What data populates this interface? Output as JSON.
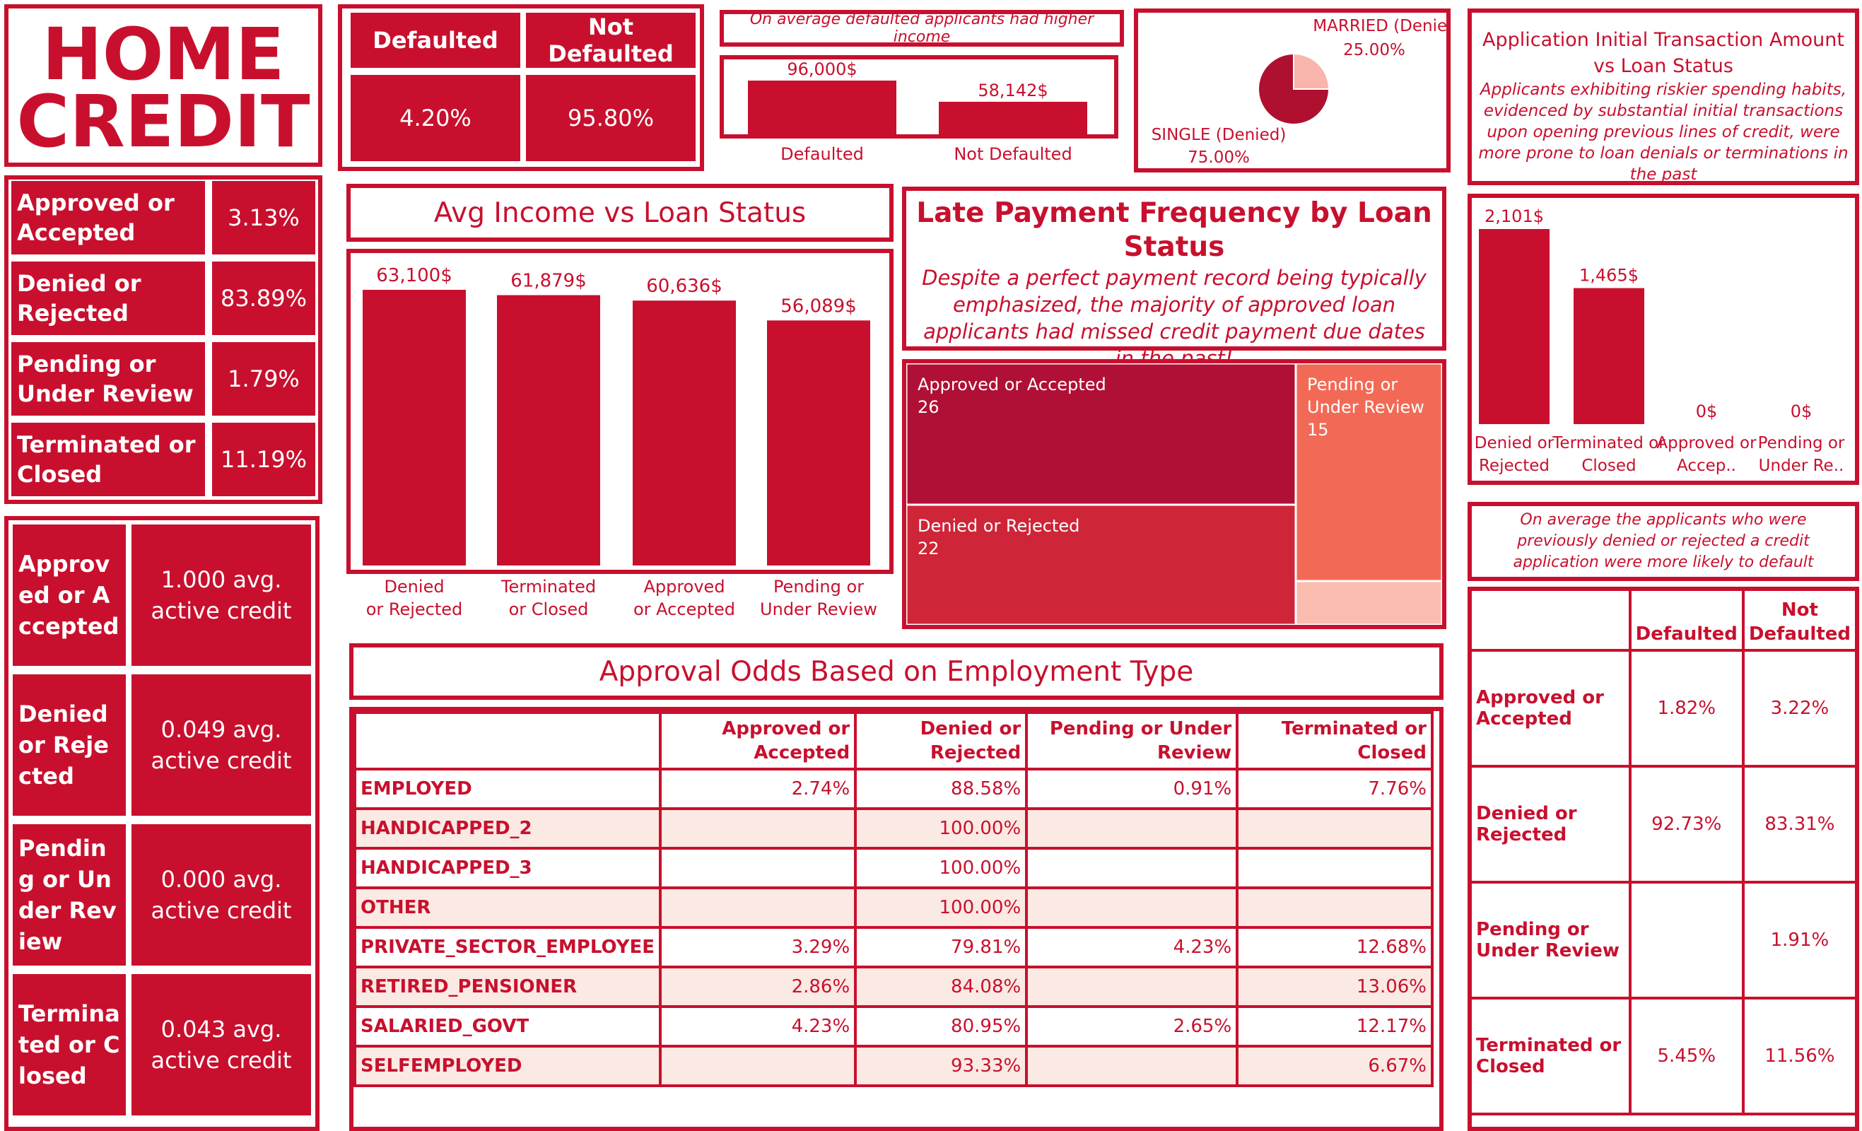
{
  "logo": {
    "line1": "HOME",
    "line2": "CREDIT"
  },
  "status_share": [
    {
      "label": "Approved or Accepted",
      "value": "3.13%"
    },
    {
      "label": "Denied or Rejected",
      "value": "83.89%"
    },
    {
      "label": "Pending or Under Review",
      "value": "1.79%"
    },
    {
      "label": "Terminated or Closed",
      "value": "11.19%"
    }
  ],
  "active_credit": [
    {
      "label": "Approved or Accepted",
      "value": "1.000 avg. active credit"
    },
    {
      "label": "Denied or Rejected",
      "value": "0.049 avg. active credit"
    },
    {
      "label": "Pending or Under Review",
      "value": "0.000 avg. active credit"
    },
    {
      "label": "Terminated or Closed",
      "value": "0.043 avg. active credit"
    }
  ],
  "default_rate": {
    "headers": [
      "Defaulted",
      "Not Defaulted"
    ],
    "values": [
      "4.20%",
      "95.80%"
    ]
  },
  "income_default": {
    "note": "On average defaulted applicants had higher income",
    "chart_data": {
      "type": "bar",
      "categories": [
        "Defaulted",
        "Not Defaulted"
      ],
      "values": [
        96000,
        58142
      ],
      "labels": [
        "96,000$",
        "58,142$"
      ]
    }
  },
  "marital": {
    "chart_data": {
      "type": "pie",
      "slices": [
        {
          "name": "MARRIED (Denied)",
          "value": 25.0,
          "label": "25.00%",
          "color": "#f9b4ab"
        },
        {
          "name": "SINGLE (Denied)",
          "value": 75.0,
          "label": "75.00%",
          "color": "#b01030"
        }
      ]
    }
  },
  "avg_income": {
    "title": "Avg Income vs Loan Status",
    "chart_data": {
      "type": "bar",
      "categories": [
        "Denied or Rejected",
        "Terminated or Closed",
        "Approved or Accepted",
        "Pending or Under Review"
      ],
      "values": [
        63100,
        61879,
        60636,
        56089
      ],
      "labels": [
        "63,100$",
        "61,879$",
        "60,636$",
        "56,089$"
      ]
    }
  },
  "late_payment": {
    "title": "Late Payment Frequency by Loan Status",
    "subtitle": "Despite a perfect payment record being typically emphasized, the majority of approved loan applicants had missed credit payment due dates in the past!",
    "chart_data": {
      "type": "heatmap",
      "cells": [
        {
          "name": "Approved or Accepted",
          "value": 26,
          "color": "#b01035"
        },
        {
          "name": "Denied or Rejected",
          "value": 22,
          "color": "#cf2538"
        },
        {
          "name": "Pending or Under Review",
          "value": 15,
          "color": "#f26a56"
        },
        {
          "name": "",
          "value": 3,
          "color": "#fbbcb0"
        }
      ]
    }
  },
  "transaction": {
    "title": "Application Initial Transaction Amount vs Loan Status",
    "subtitle": "Applicants exhibiting riskier spending habits, evidenced by substantial initial transactions upon opening previous lines of credit, were more prone to loan denials or terminations in the past",
    "chart_data": {
      "type": "bar",
      "categories": [
        "Denied or Rejected",
        "Terminated or Closed",
        "Approved or Accep..",
        "Pending or Under Re.."
      ],
      "values": [
        2101,
        1465,
        0,
        0
      ],
      "labels": [
        "2,101$",
        "1,465$",
        "0$",
        "0$"
      ]
    }
  },
  "employment": {
    "title": "Approval Odds Based on Employment Type",
    "chart_data": {
      "type": "table",
      "columns": [
        "Approved or Accepted",
        "Denied or Rejected",
        "Pending or Under Review",
        "Terminated or Closed"
      ],
      "rows": [
        {
          "name": "EMPLOYED",
          "values": [
            "2.74%",
            "88.58%",
            "0.91%",
            "7.76%"
          ]
        },
        {
          "name": "HANDICAPPED_2",
          "values": [
            "",
            "100.00%",
            "",
            ""
          ]
        },
        {
          "name": "HANDICAPPED_3",
          "values": [
            "",
            "100.00%",
            "",
            ""
          ]
        },
        {
          "name": "OTHER",
          "values": [
            "",
            "100.00%",
            "",
            ""
          ]
        },
        {
          "name": "PRIVATE_SECTOR_EMPLOYEE",
          "values": [
            "3.29%",
            "79.81%",
            "4.23%",
            "12.68%"
          ]
        },
        {
          "name": "RETIRED_PENSIONER",
          "values": [
            "2.86%",
            "84.08%",
            "",
            "13.06%"
          ]
        },
        {
          "name": "SALARIED_GOVT",
          "values": [
            "4.23%",
            "80.95%",
            "2.65%",
            "12.17%"
          ]
        },
        {
          "name": "SELFEMPLOYED",
          "values": [
            "",
            "93.33%",
            "",
            "6.67%"
          ]
        }
      ]
    }
  },
  "prev_denied": {
    "note": "On average the applicants who were previously denied or rejected a credit application were more likely to default",
    "chart_data": {
      "type": "table",
      "columns": [
        "Defaulted",
        "Not Defaulted"
      ],
      "rows": [
        {
          "name": "Approved or Accepted",
          "values": [
            "1.82%",
            "3.22%"
          ]
        },
        {
          "name": "Denied or Rejected",
          "values": [
            "92.73%",
            "83.31%"
          ]
        },
        {
          "name": "Pending or Under Review",
          "values": [
            "",
            "1.91%"
          ]
        },
        {
          "name": "Terminated or Closed",
          "values": [
            "5.45%",
            "11.56%"
          ]
        }
      ]
    }
  }
}
